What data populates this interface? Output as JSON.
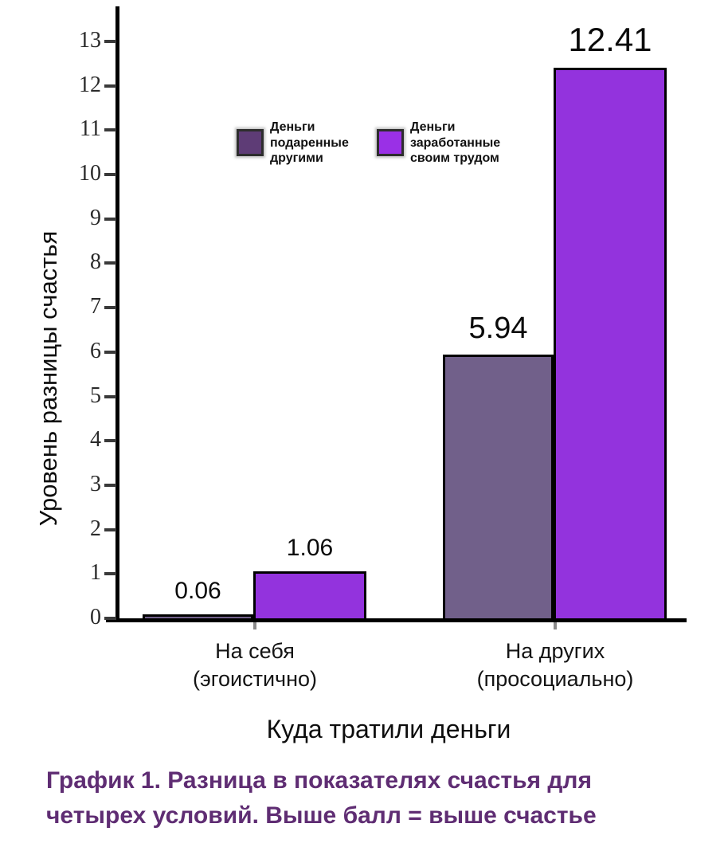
{
  "chart_data": {
    "type": "bar",
    "categories": [
      "На себя\n(эгоистично)",
      "На других\n(просоциально)"
    ],
    "series": [
      {
        "name": "Деньги подаренные другими",
        "legend_label": "Деньги\nподаренные\nдругими",
        "values": [
          0.06,
          5.94
        ],
        "color": "#71608a",
        "legend_swatch_color": "#5e3c76"
      },
      {
        "name": "Деньги заработанные своим трудом",
        "legend_label": "Деньги\nзаработанные\nсвоим трудом",
        "values": [
          1.06,
          12.41
        ],
        "color": "#9333dd",
        "legend_swatch_color": "#9a30e6"
      }
    ],
    "value_labels": [
      [
        "0.06",
        "5.94"
      ],
      [
        "1.06",
        "12.41"
      ]
    ],
    "xlabel": "Куда тратили деньги",
    "ylabel": "Уровень разницы счастья",
    "ylim": [
      0,
      13
    ],
    "yticks": [
      0,
      1,
      2,
      3,
      4,
      5,
      6,
      7,
      8,
      9,
      10,
      11,
      12,
      13
    ],
    "grid": false,
    "legend_position": "inside-top-left",
    "bar_border_color": "#000000",
    "axis_color": "#000000"
  },
  "caption": {
    "text": "График 1. Разница в показателях счастья для\nчетырех условий. Выше балл = выше счастье",
    "color": "#5f2d73"
  },
  "background": "#ffffff"
}
